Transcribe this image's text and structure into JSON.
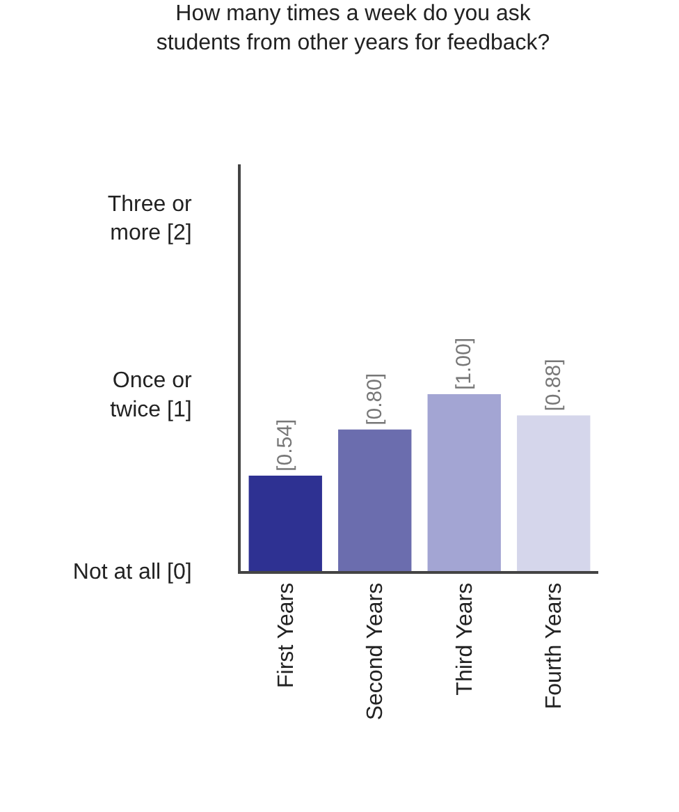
{
  "chart_data": {
    "type": "bar",
    "title": "How many times a week do you ask\nstudents from other years for feedback?",
    "categories": [
      "First Years",
      "Second Years",
      "Third Years",
      "Fourth Years"
    ],
    "values": [
      0.54,
      0.8,
      1.0,
      0.88
    ],
    "colors": [
      "#2e3192",
      "#6b6dae",
      "#a3a5d3",
      "#d5d6eb"
    ],
    "value_labels": [
      "[0.54]",
      "[0.80]",
      "[1.00]",
      "[0.88]"
    ],
    "ylim": [
      0,
      2.3
    ],
    "yticks": [
      {
        "value": 0,
        "label": "Not at all [0]"
      },
      {
        "value": 1,
        "label": "Once or\ntwice [1]"
      },
      {
        "value": 2,
        "label": "Three or\nmore [2]"
      }
    ]
  }
}
